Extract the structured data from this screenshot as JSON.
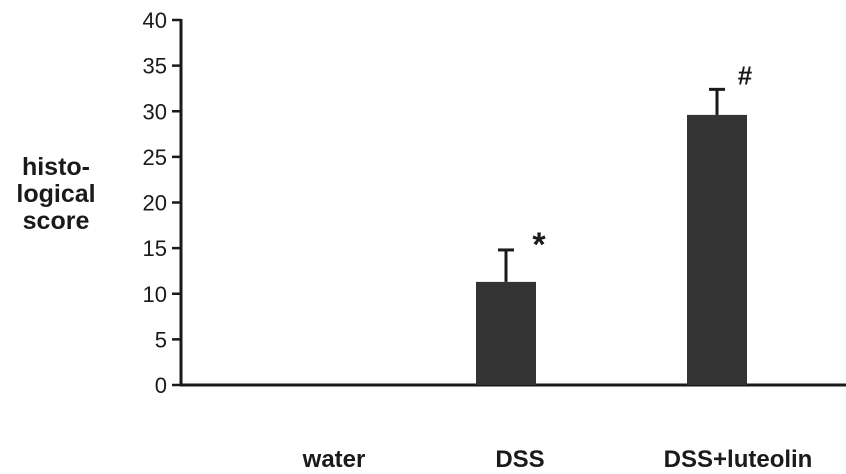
{
  "chart_data": {
    "type": "bar",
    "categories": [
      "water",
      "DSS",
      "DSS+luteolin"
    ],
    "values": [
      0,
      11.3,
      29.6
    ],
    "error_bars": [
      0,
      3.5,
      2.8
    ],
    "annotations": [
      "",
      "*",
      "#"
    ],
    "ylabel_lines": [
      "histo-",
      "logical",
      "score"
    ],
    "ylim": [
      0,
      40
    ],
    "yticks": [
      "0",
      "5",
      "10",
      "15",
      "20",
      "25",
      "30",
      "35",
      "40"
    ],
    "grid": false,
    "bar_color": "#333333"
  }
}
